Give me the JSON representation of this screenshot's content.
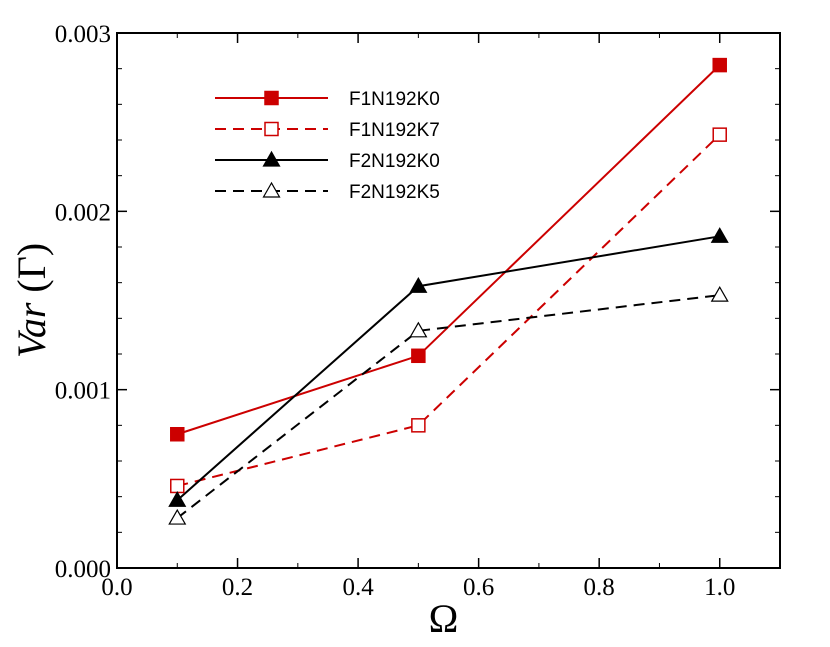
{
  "chart_data": {
    "type": "line",
    "title": "",
    "xlabel": "Ω",
    "ylabel_italic": "Var",
    "ylabel_rest": " (Γ)",
    "xlim": [
      0.0,
      1.1
    ],
    "ylim": [
      0.0,
      0.003
    ],
    "x_ticks": [
      0.0,
      0.2,
      0.4,
      0.6,
      0.8,
      1.0
    ],
    "x_tick_labels": [
      "0.0",
      "0.2",
      "0.4",
      "0.6",
      "0.8",
      "1.0"
    ],
    "y_ticks": [
      0.0,
      0.001,
      0.002,
      0.003
    ],
    "y_tick_labels": [
      "0.000",
      "0.001",
      "0.002",
      "0.003"
    ],
    "legend_position": "top-left",
    "grid": false,
    "series": [
      {
        "name": "F1N192K0",
        "color": "#cc0000",
        "dash": "solid",
        "marker": "square-filled",
        "x": [
          0.1,
          0.5,
          1.0
        ],
        "y": [
          0.00075,
          0.00119,
          0.00282
        ]
      },
      {
        "name": "F1N192K7",
        "color": "#cc0000",
        "dash": "dashed",
        "marker": "square-open",
        "x": [
          0.1,
          0.5,
          1.0
        ],
        "y": [
          0.00046,
          0.0008,
          0.00243
        ]
      },
      {
        "name": "F2N192K0",
        "color": "#000000",
        "dash": "solid",
        "marker": "triangle-filled",
        "x": [
          0.1,
          0.5,
          1.0
        ],
        "y": [
          0.00038,
          0.00158,
          0.00186
        ]
      },
      {
        "name": "F2N192K5",
        "color": "#000000",
        "dash": "dashed",
        "marker": "triangle-open",
        "x": [
          0.1,
          0.5,
          1.0
        ],
        "y": [
          0.00028,
          0.00133,
          0.00153
        ]
      }
    ]
  }
}
